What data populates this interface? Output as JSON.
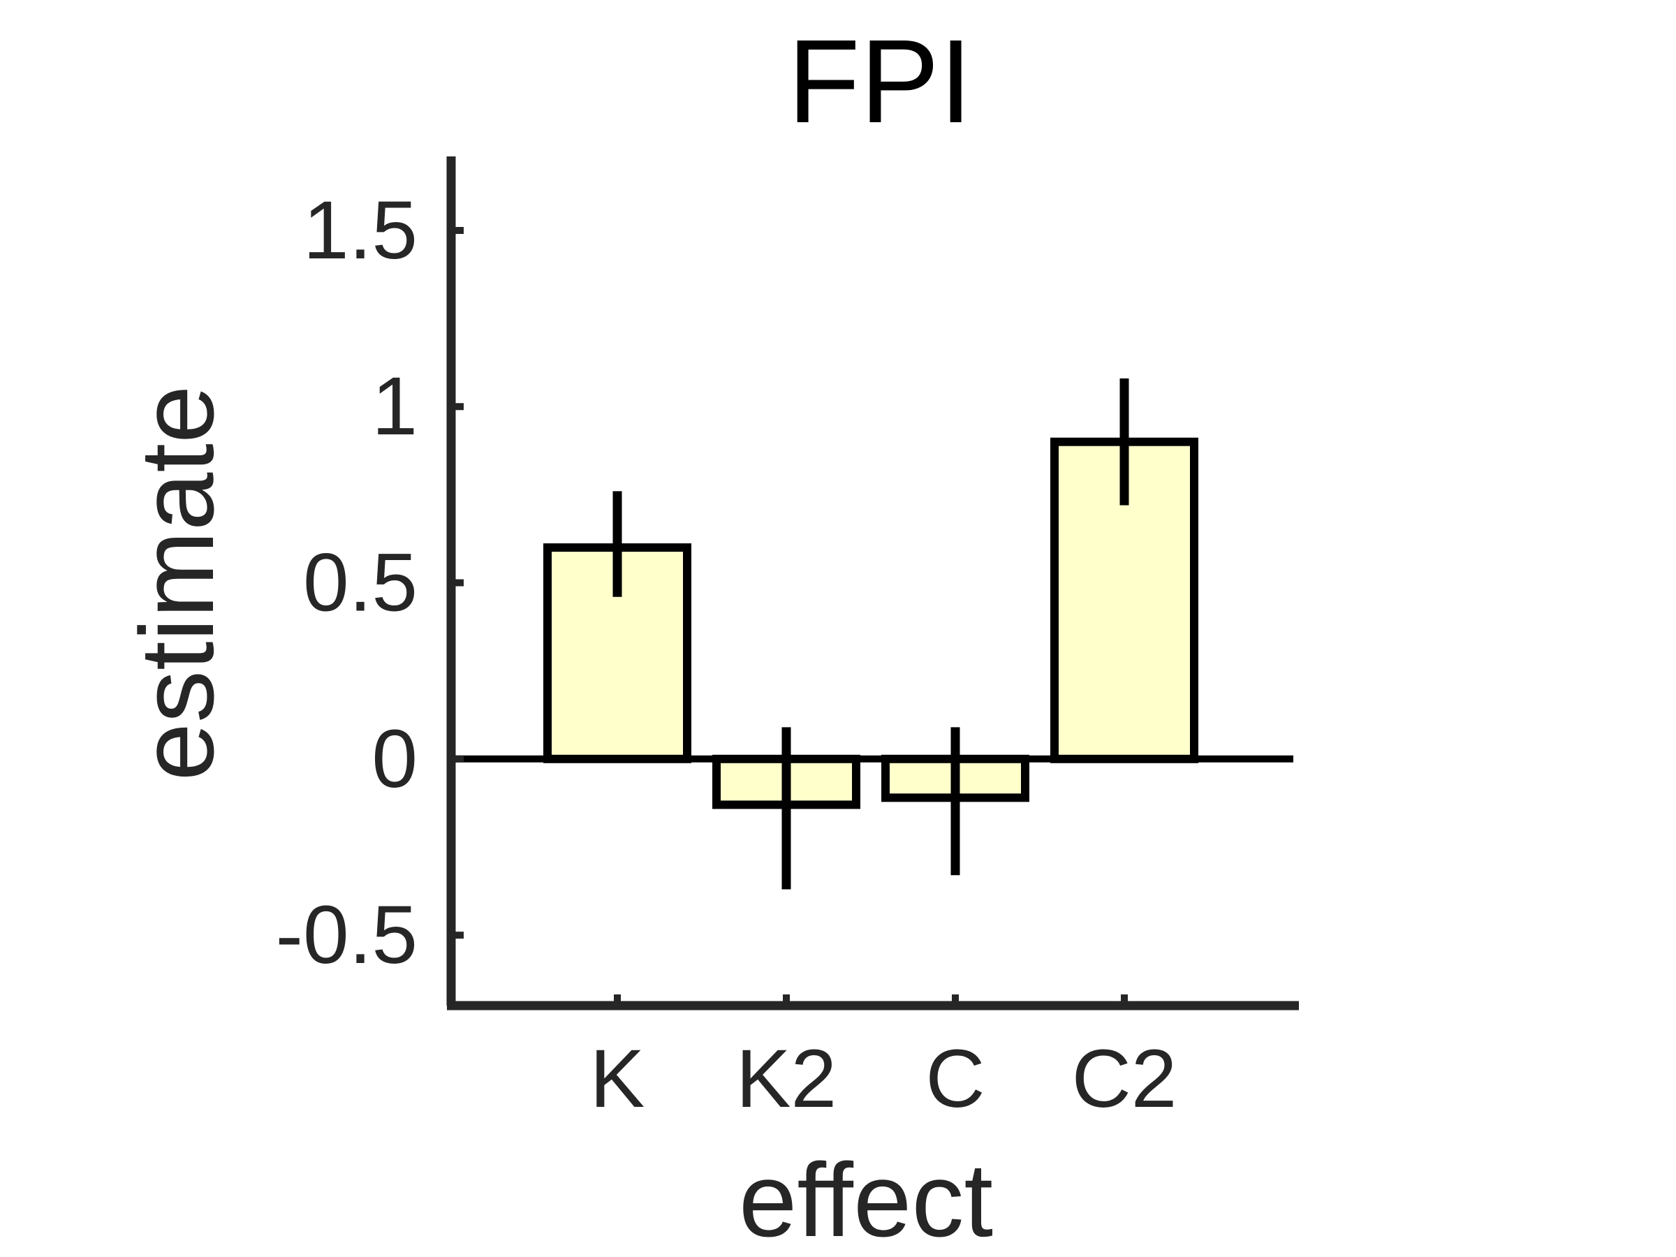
{
  "chart_data": {
    "type": "bar",
    "title": "FPI",
    "xlabel": "effect",
    "ylabel": "estimate",
    "categories": [
      "K",
      "K2",
      "C",
      "C2"
    ],
    "series": [
      {
        "values": [
          0.6,
          -0.13,
          -0.11,
          0.9
        ],
        "error_low": [
          0.46,
          -0.37,
          -0.33,
          0.72
        ],
        "error_high": [
          0.76,
          0.09,
          0.09,
          1.08
        ]
      }
    ],
    "ylim": [
      -0.7,
      1.71
    ],
    "yticks": [
      -0.5,
      0,
      0.5,
      1,
      1.5
    ],
    "ytick_labels": [
      "-0.5",
      "0",
      "0.5",
      "1",
      "1.5"
    ],
    "grid": false,
    "colors": {
      "bar_fill": "#ffffcc",
      "bar_edge": "#000000",
      "axis": "#262626",
      "text": "#262626"
    }
  }
}
